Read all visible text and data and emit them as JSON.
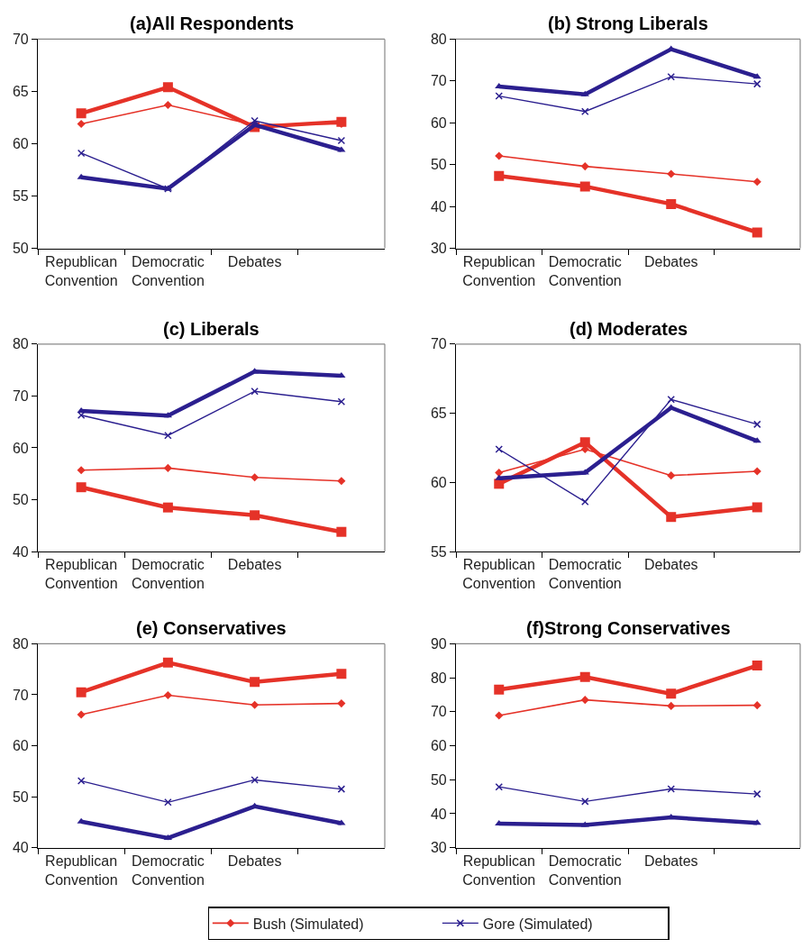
{
  "chart_data": [
    {
      "type": "line",
      "title": "(a)All Respondents",
      "categories": [
        "Republican Convention",
        "Democratic Convention",
        "Debates",
        null
      ],
      "ylim": [
        50,
        70
      ],
      "yticks": [
        50,
        55,
        60,
        65,
        70
      ],
      "series": [
        {
          "color": "#e53228",
          "marker": "square",
          "values": [
            62.9,
            65.4,
            61.6,
            62.1
          ]
        },
        {
          "color": "#e53228",
          "marker": "diamond",
          "values": [
            61.9,
            63.7,
            61.8,
            61.9
          ]
        },
        {
          "color": "#2b1f8f",
          "marker": "triangle",
          "values": [
            56.8,
            55.7,
            61.8,
            59.4
          ]
        },
        {
          "color": "#2b1f8f",
          "marker": "cross",
          "values": [
            59.1,
            55.7,
            62.2,
            60.3
          ]
        }
      ]
    },
    {
      "type": "line",
      "title": "(b) Strong Liberals",
      "categories": [
        "Republican Convention",
        "Democratic Convention",
        "Debates",
        null
      ],
      "ylim": [
        30,
        80
      ],
      "yticks": [
        30,
        40,
        50,
        60,
        70,
        80
      ],
      "series": [
        {
          "color": "#e53228",
          "marker": "square",
          "values": [
            47.3,
            44.8,
            40.6,
            33.8
          ]
        },
        {
          "color": "#e53228",
          "marker": "diamond",
          "values": [
            52.1,
            49.6,
            47.8,
            45.9
          ]
        },
        {
          "color": "#2b1f8f",
          "marker": "triangle",
          "values": [
            68.7,
            66.8,
            77.6,
            71.0
          ]
        },
        {
          "color": "#2b1f8f",
          "marker": "cross",
          "values": [
            66.4,
            62.7,
            71.0,
            69.3
          ]
        }
      ]
    },
    {
      "type": "line",
      "title": "(c) Liberals",
      "categories": [
        "Republican Convention",
        "Democratic Convention",
        "Debates",
        null
      ],
      "ylim": [
        40,
        80
      ],
      "yticks": [
        40,
        50,
        60,
        70,
        80
      ],
      "series": [
        {
          "color": "#e53228",
          "marker": "square",
          "values": [
            52.4,
            48.5,
            47.0,
            43.8
          ]
        },
        {
          "color": "#e53228",
          "marker": "diamond",
          "values": [
            55.7,
            56.1,
            54.3,
            53.6
          ]
        },
        {
          "color": "#2b1f8f",
          "marker": "triangle",
          "values": [
            67.1,
            66.2,
            74.7,
            73.9
          ]
        },
        {
          "color": "#2b1f8f",
          "marker": "cross",
          "values": [
            66.3,
            62.4,
            70.9,
            68.9
          ]
        }
      ]
    },
    {
      "type": "line",
      "title": "(d) Moderates",
      "categories": [
        "Republican Convention",
        "Democratic Convention",
        "Debates",
        null
      ],
      "ylim": [
        55,
        70
      ],
      "yticks": [
        55,
        60,
        65,
        70
      ],
      "series": [
        {
          "color": "#e53228",
          "marker": "square",
          "values": [
            59.9,
            62.9,
            57.5,
            58.2
          ]
        },
        {
          "color": "#e53228",
          "marker": "diamond",
          "values": [
            60.7,
            62.4,
            60.5,
            60.8
          ]
        },
        {
          "color": "#2b1f8f",
          "marker": "triangle",
          "values": [
            60.3,
            60.7,
            65.4,
            63.0
          ]
        },
        {
          "color": "#2b1f8f",
          "marker": "cross",
          "values": [
            62.4,
            58.6,
            66.0,
            64.2
          ]
        }
      ]
    },
    {
      "type": "line",
      "title": "(e) Conservatives",
      "categories": [
        "Republican Convention",
        "Democratic Convention",
        "Debates",
        null
      ],
      "ylim": [
        40,
        80
      ],
      "yticks": [
        40,
        50,
        60,
        70,
        80
      ],
      "series": [
        {
          "color": "#e53228",
          "marker": "square",
          "values": [
            70.5,
            76.3,
            72.5,
            74.1
          ]
        },
        {
          "color": "#e53228",
          "marker": "diamond",
          "values": [
            66.1,
            69.9,
            68.0,
            68.3
          ]
        },
        {
          "color": "#2b1f8f",
          "marker": "triangle",
          "values": [
            45.1,
            41.9,
            48.1,
            44.8
          ]
        },
        {
          "color": "#2b1f8f",
          "marker": "cross",
          "values": [
            53.1,
            48.9,
            53.3,
            51.5
          ]
        }
      ]
    },
    {
      "type": "line",
      "title": "(f)Strong Conservatives",
      "categories": [
        "Republican Convention",
        "Democratic Convention",
        "Debates",
        null
      ],
      "ylim": [
        30,
        90
      ],
      "yticks": [
        30,
        40,
        50,
        60,
        70,
        80,
        90
      ],
      "legend": "bottom",
      "series": [
        {
          "color": "#e53228",
          "marker": "square",
          "values": [
            76.5,
            80.2,
            75.3,
            83.6
          ]
        },
        {
          "name": "Bush (Simulated)",
          "color": "#e53228",
          "marker": "diamond",
          "values": [
            68.9,
            73.5,
            71.7,
            71.9
          ]
        },
        {
          "color": "#2b1f8f",
          "marker": "triangle",
          "values": [
            37.1,
            36.7,
            38.9,
            37.3
          ]
        },
        {
          "name": "Gore (Simulated)",
          "color": "#2b1f8f",
          "marker": "cross",
          "values": [
            47.9,
            43.6,
            47.3,
            45.8
          ]
        }
      ]
    }
  ]
}
